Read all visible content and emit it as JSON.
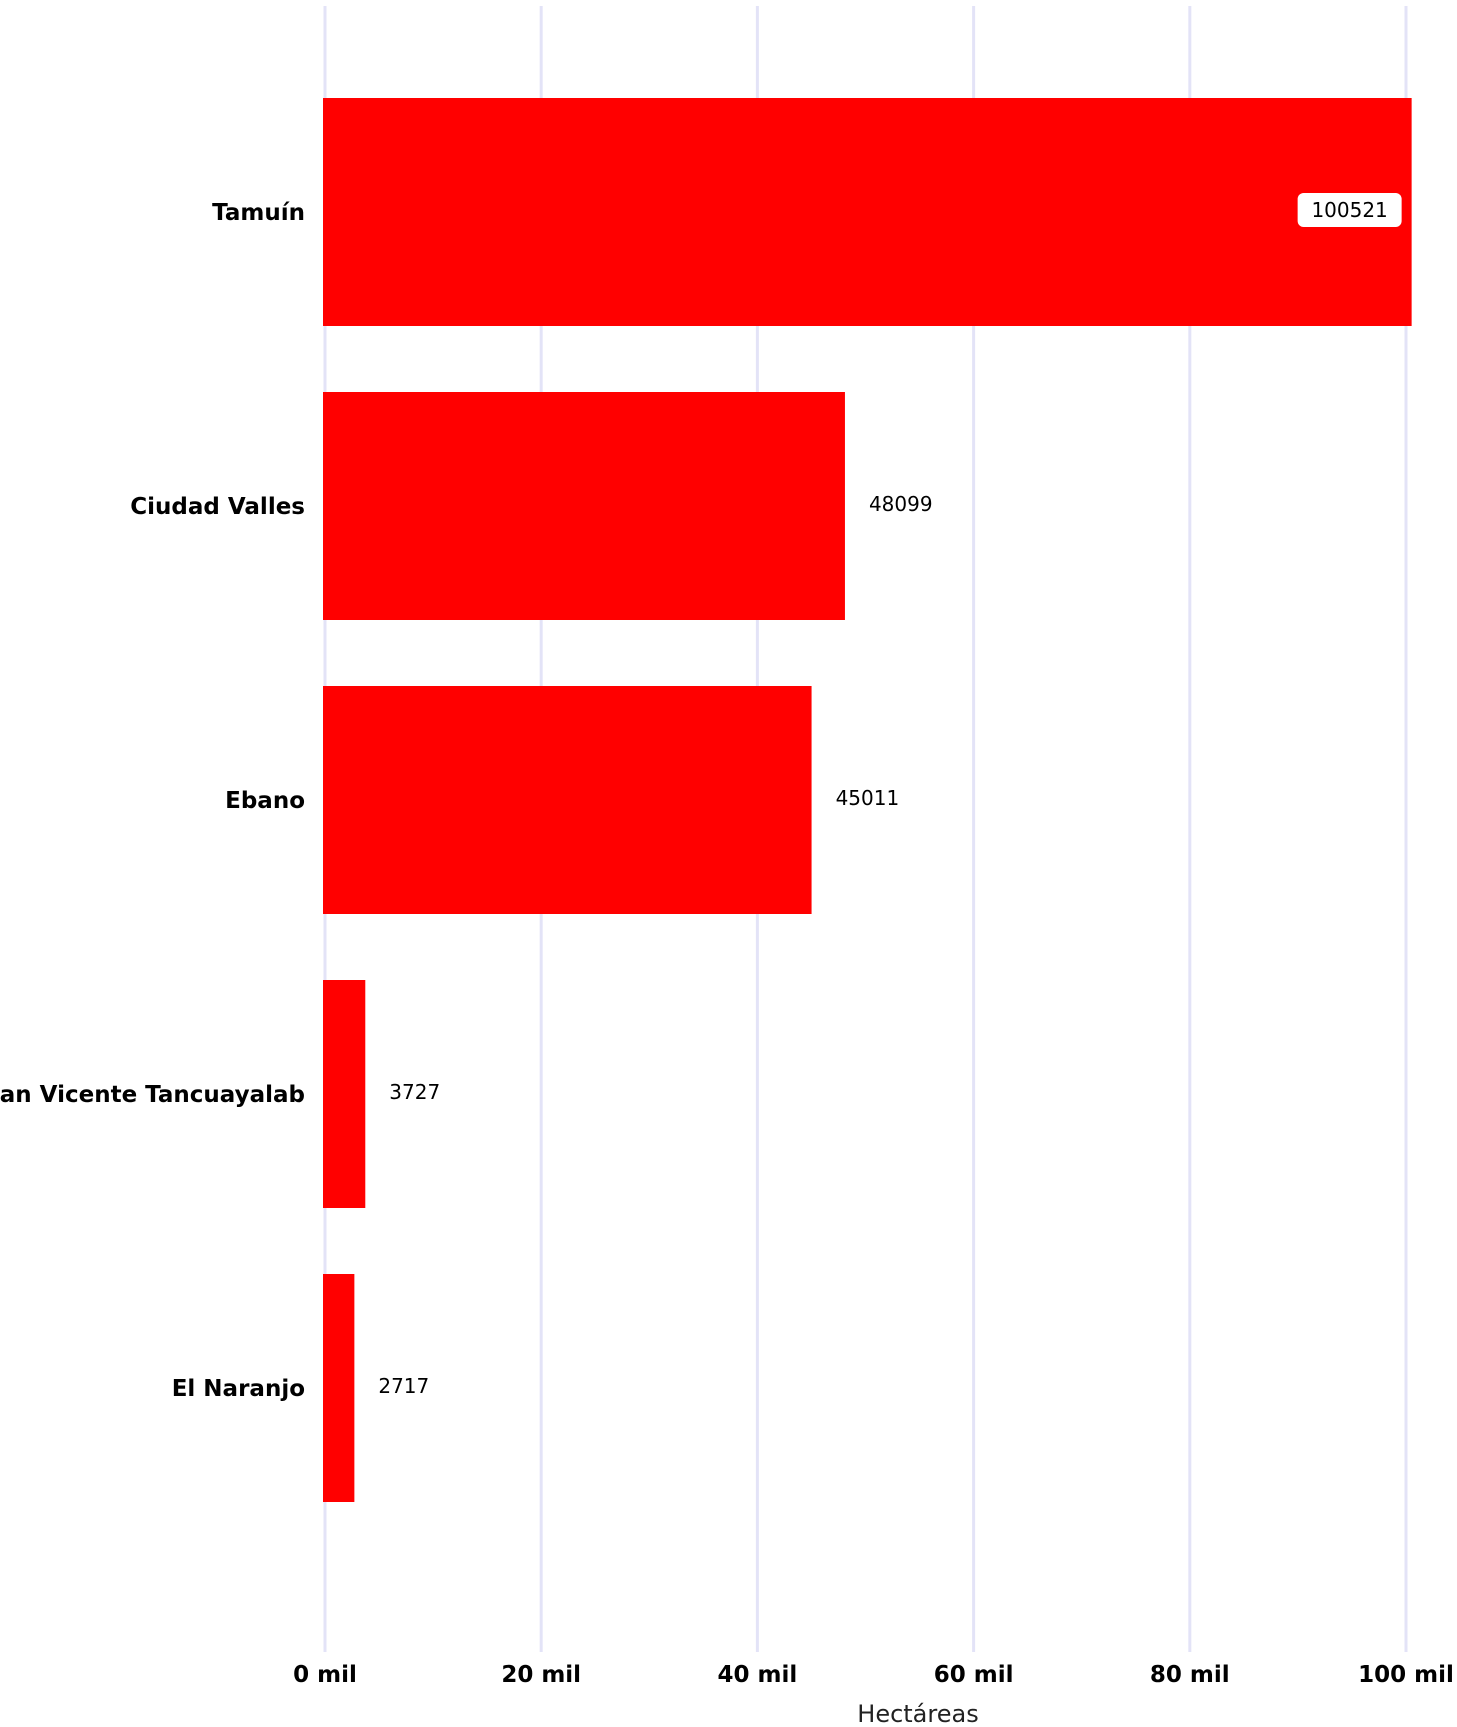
{
  "chart_data": {
    "type": "bar",
    "orientation": "horizontal",
    "categories": [
      "Tamuín",
      "Ciudad Valles",
      "Ebano",
      "San Vicente Tancuayalab",
      "El Naranjo"
    ],
    "values": [
      100521,
      48099,
      45011,
      3727,
      2717
    ],
    "data_labels": [
      "100521",
      "48099",
      "45011",
      "3727",
      "2717"
    ],
    "xlabel": "Hectáreas",
    "ylabel": "",
    "xlim": [
      0,
      100000
    ],
    "x_ticks": [
      0,
      20000,
      40000,
      60000,
      80000,
      100000
    ],
    "x_tick_labels": [
      "0 mil",
      "20 mil",
      "40 mil",
      "60 mil",
      "80 mil",
      "100 mil"
    ],
    "grid": "vertical",
    "legend": "none",
    "bar_color": "#ff0000",
    "grid_color": "#e3e3f7"
  }
}
